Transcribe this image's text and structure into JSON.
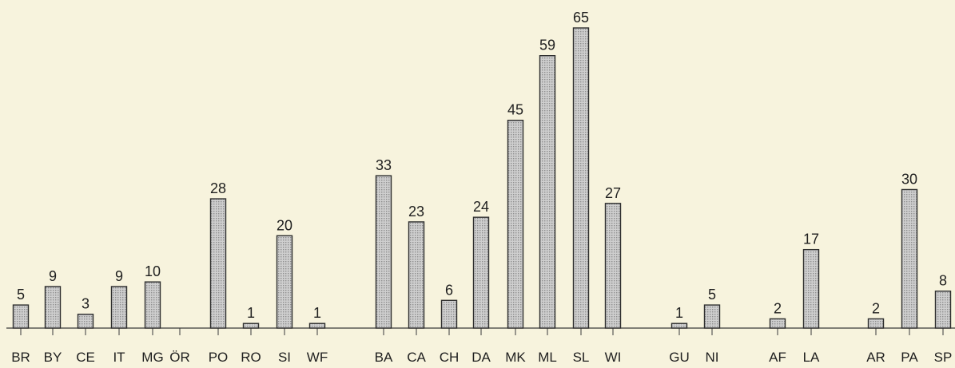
{
  "chart_data": {
    "type": "bar",
    "title": "",
    "xlabel": "",
    "ylabel": "",
    "ylim": [
      0,
      65
    ],
    "grid": false,
    "legend": "none",
    "colors": {
      "bar_fill": "#cfcfcf",
      "bar_hatch": "#8e8e8e",
      "bar_edge": "#2e2e2e",
      "background": "#f7f3dd"
    },
    "categories": [
      "BR",
      "BY",
      "CE",
      "IT",
      "MG",
      "ÖR",
      "PO",
      "RO",
      "SI",
      "WF",
      "BA",
      "CA",
      "CH",
      "DA",
      "MK",
      "ML",
      "SL",
      "WI",
      "GU",
      "NI",
      "AF",
      "LA",
      "AR",
      "PA",
      "SP"
    ],
    "values": [
      5,
      9,
      3,
      9,
      10,
      0,
      28,
      1,
      20,
      1,
      33,
      23,
      6,
      24,
      45,
      59,
      65,
      27,
      1,
      5,
      2,
      17,
      2,
      30,
      8
    ],
    "value_labels": [
      "5",
      "9",
      "3",
      "9",
      "10",
      "",
      "28",
      "1",
      "20",
      "1",
      "33",
      "23",
      "6",
      "24",
      "45",
      "59",
      "65",
      "27",
      "1",
      "5",
      "2",
      "17",
      "2",
      "30",
      "8"
    ],
    "groups": [
      [
        "BR",
        "BY",
        "CE",
        "IT",
        "MG",
        "ÖR",
        "PO",
        "RO",
        "SI",
        "WF"
      ],
      [
        "BA",
        "CA",
        "CH",
        "DA",
        "MK",
        "ML",
        "SL",
        "WI"
      ],
      [
        "GU",
        "NI"
      ],
      [
        "AF",
        "LA"
      ],
      [
        "AR",
        "PA",
        "SP"
      ]
    ]
  }
}
